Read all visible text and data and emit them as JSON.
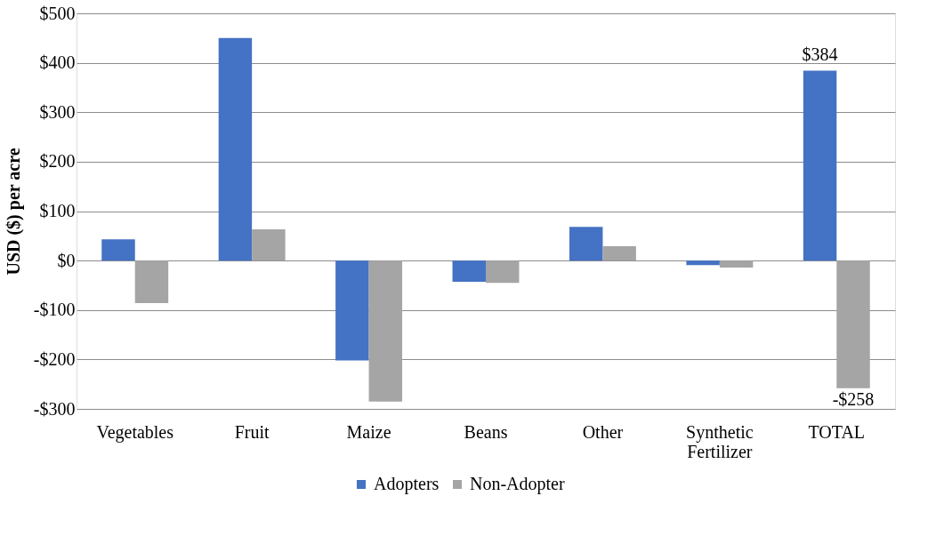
{
  "chart_data": {
    "type": "bar",
    "ylabel": "USD ($) per acre",
    "categories": [
      "Vegetables",
      "Fruit",
      "Maize",
      "Beans",
      "Other",
      "Synthetic Fertilizer",
      "TOTAL"
    ],
    "series": [
      {
        "name": "Adopters",
        "color": "#4472c4",
        "values": [
          43,
          450,
          -202,
          -43,
          68,
          -9,
          384
        ],
        "value_labels": [
          null,
          null,
          null,
          null,
          null,
          null,
          "$384"
        ]
      },
      {
        "name": "Non-Adopter",
        "color": "#a5a5a5",
        "values": [
          -86,
          63,
          -285,
          -45,
          29,
          -14,
          -258
        ],
        "value_labels": [
          null,
          null,
          null,
          null,
          null,
          null,
          "-$258"
        ]
      }
    ],
    "ylim": [
      -300,
      500
    ],
    "yticks": [
      {
        "value": -300,
        "label": "-$300"
      },
      {
        "value": -200,
        "label": "-$200"
      },
      {
        "value": -100,
        "label": "-$100"
      },
      {
        "value": 0,
        "label": "$0"
      },
      {
        "value": 100,
        "label": "$100"
      },
      {
        "value": 200,
        "label": "$200"
      },
      {
        "value": 300,
        "label": "$300"
      },
      {
        "value": 400,
        "label": "$400"
      },
      {
        "value": 500,
        "label": "$500"
      }
    ],
    "grid": "y",
    "legend": "bottom"
  }
}
